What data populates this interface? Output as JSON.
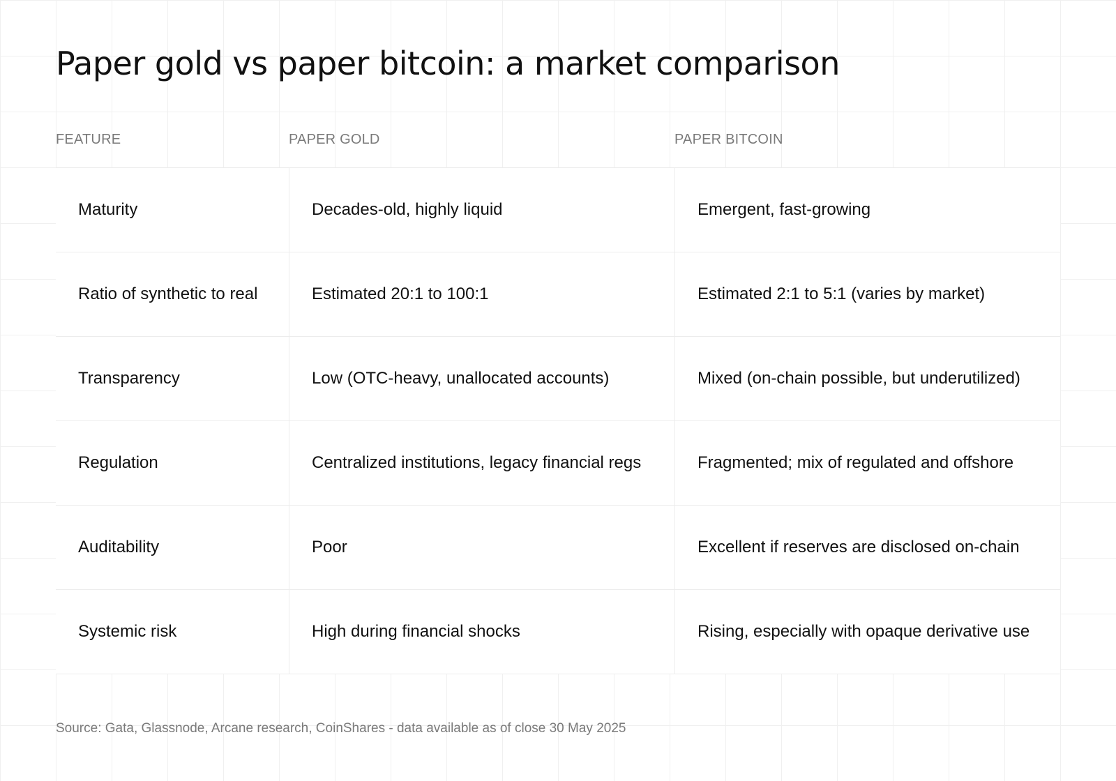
{
  "title": "Paper gold vs paper bitcoin: a market comparison",
  "table": {
    "headers": [
      "FEATURE",
      "PAPER GOLD",
      "PAPER BITCOIN"
    ],
    "rows": [
      {
        "feature": "Maturity",
        "gold": "Decades-old, highly liquid",
        "bitcoin": "Emergent, fast-growing"
      },
      {
        "feature": "Ratio of synthetic to real",
        "gold": "Estimated 20:1 to 100:1",
        "bitcoin": "Estimated 2:1 to 5:1 (varies by market)"
      },
      {
        "feature": "Transparency",
        "gold": "Low (OTC-heavy, unallocated accounts)",
        "bitcoin": "Mixed (on-chain possible, but underutilized)"
      },
      {
        "feature": "Regulation",
        "gold": "Centralized institutions, legacy financial regs",
        "bitcoin": "Fragmented; mix of regulated and offshore"
      },
      {
        "feature": "Auditability",
        "gold": "Poor",
        "bitcoin": "Excellent if reserves are disclosed on-chain"
      },
      {
        "feature": "Systemic risk",
        "gold": "High during financial shocks",
        "bitcoin": "Rising, especially with opaque derivative use"
      }
    ]
  },
  "source": "Source: Gata, Glassnode, Arcane research, CoinShares - data available as of close 30 May 2025"
}
